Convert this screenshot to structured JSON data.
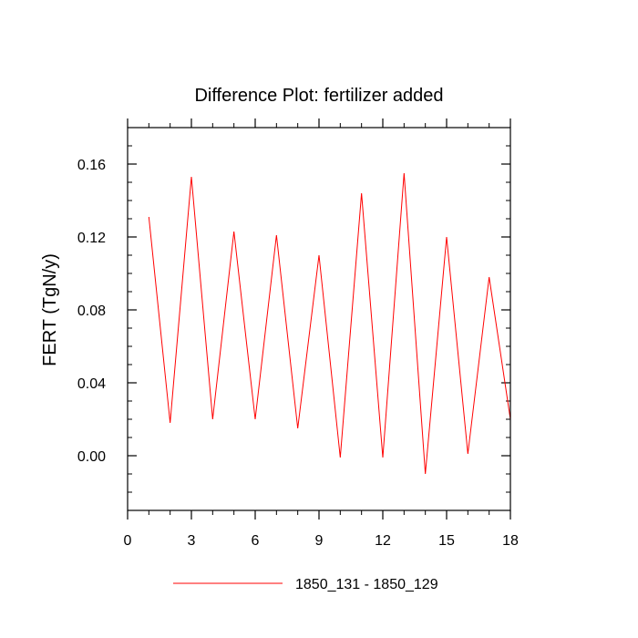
{
  "chart_data": {
    "type": "line",
    "title": "Difference Plot: fertilizer added",
    "xlabel": "",
    "ylabel": "FERT  (TgN/y)",
    "xlim": [
      0,
      18
    ],
    "ylim": [
      -0.03,
      0.18
    ],
    "x_ticks": [
      0,
      3,
      6,
      9,
      12,
      15,
      18
    ],
    "x_tick_labels": [
      "0",
      "3",
      "6",
      "9",
      "12",
      "15",
      "18"
    ],
    "y_ticks": [
      0.0,
      0.04,
      0.08,
      0.12,
      0.16
    ],
    "y_tick_labels": [
      "0.00",
      "0.04",
      "0.08",
      "0.12",
      "0.16"
    ],
    "grid": false,
    "legend_position": "bottom-center",
    "series": [
      {
        "name": "1850_131 - 1850_129",
        "color": "#ff0000",
        "x": [
          1,
          2,
          3,
          4,
          5,
          6,
          7,
          8,
          9,
          10,
          11,
          12,
          13,
          14,
          15,
          16,
          17,
          18
        ],
        "y": [
          0.131,
          0.018,
          0.153,
          0.02,
          0.123,
          0.02,
          0.121,
          0.015,
          0.11,
          -0.001,
          0.144,
          -0.001,
          0.155,
          -0.01,
          0.12,
          0.001,
          0.098,
          0.02
        ]
      }
    ]
  }
}
